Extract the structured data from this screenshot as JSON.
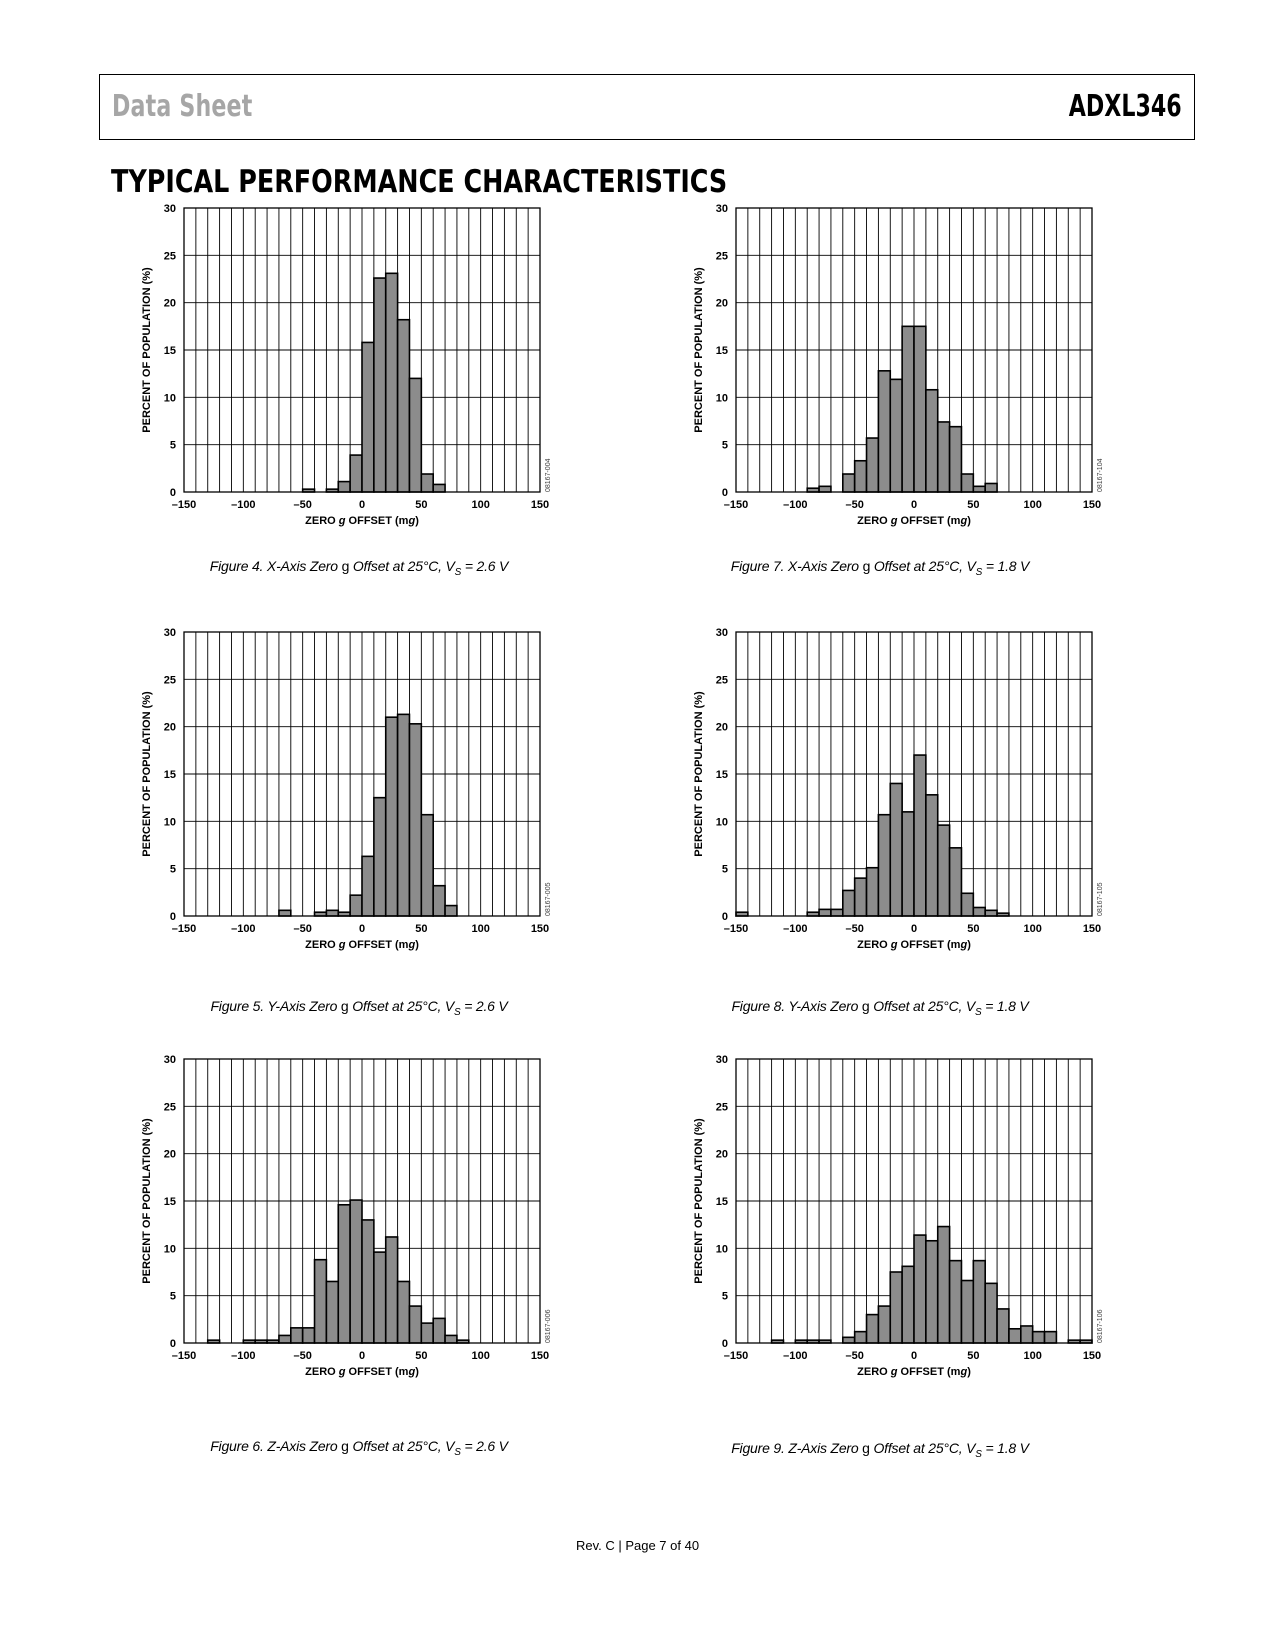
{
  "header": {
    "left_text": "Data Sheet",
    "right_text": "ADXL346"
  },
  "section_title": "TYPICAL PERFORMANCE CHARACTERISTICS",
  "footer": "Rev. C | Page 7 of 40",
  "chart_data": [
    {
      "id": "fig4",
      "type": "bar",
      "caption": {
        "prefix": "Figure 4. X-Axis Zero ",
        "g": "g",
        "middle": " Offset at 25°C, V",
        "sub": "S",
        "suffix": " = 2.6 V"
      },
      "code": "08167-004",
      "xlabel": "ZERO g OFFSET (mg)",
      "ylabel": "PERCENT OF POPULATION (%)",
      "xlim": [
        -150,
        150
      ],
      "ylim": [
        0,
        30
      ],
      "xticks": [
        -150,
        -100,
        -50,
        0,
        50,
        100,
        150
      ],
      "yticks": [
        0,
        5,
        10,
        15,
        20,
        25,
        30
      ],
      "bin_width": 10,
      "x": [
        -50,
        -30,
        -20,
        -10,
        0,
        10,
        20,
        30,
        40,
        50,
        60
      ],
      "values": [
        0.3,
        0.3,
        1.1,
        3.9,
        15.8,
        22.6,
        23.1,
        18.2,
        12.0,
        1.9,
        0.8
      ]
    },
    {
      "id": "fig7",
      "type": "bar",
      "caption": {
        "prefix": "Figure 7. X-Axis Zero ",
        "g": "g",
        "middle": " Offset at 25°C, V",
        "sub": "S",
        "suffix": " = 1.8 V"
      },
      "code": "08167-104",
      "xlabel": "ZERO g OFFSET (mg)",
      "ylabel": "PERCENT OF POPULATION (%)",
      "xlim": [
        -150,
        150
      ],
      "ylim": [
        0,
        30
      ],
      "xticks": [
        -150,
        -100,
        -50,
        0,
        50,
        100,
        150
      ],
      "yticks": [
        0,
        5,
        10,
        15,
        20,
        25,
        30
      ],
      "bin_width": 10,
      "x": [
        -90,
        -80,
        -60,
        -50,
        -40,
        -30,
        -20,
        -10,
        0,
        10,
        20,
        30,
        40,
        50,
        60
      ],
      "values": [
        0.4,
        0.6,
        1.9,
        3.3,
        5.7,
        12.8,
        11.9,
        17.5,
        17.5,
        10.8,
        7.4,
        6.9,
        1.9,
        0.6,
        0.9
      ]
    },
    {
      "id": "fig5",
      "type": "bar",
      "caption": {
        "prefix": "Figure 5. Y-Axis Zero ",
        "g": "g",
        "middle": " Offset at 25°C, V",
        "sub": "S",
        "suffix": " = 2.6 V"
      },
      "code": "08167-005",
      "xlabel": "ZERO g OFFSET (mg)",
      "ylabel": "PERCENT OF POPULATION (%)",
      "xlim": [
        -150,
        150
      ],
      "ylim": [
        0,
        30
      ],
      "xticks": [
        -150,
        -100,
        -50,
        0,
        50,
        100,
        150
      ],
      "yticks": [
        0,
        5,
        10,
        15,
        20,
        25,
        30
      ],
      "bin_width": 10,
      "x": [
        -70,
        -40,
        -30,
        -20,
        -10,
        0,
        10,
        20,
        30,
        40,
        50,
        60,
        70
      ],
      "values": [
        0.6,
        0.4,
        0.6,
        0.4,
        2.2,
        6.3,
        12.5,
        21.0,
        21.3,
        20.3,
        10.7,
        3.2,
        1.1
      ]
    },
    {
      "id": "fig8",
      "type": "bar",
      "caption": {
        "prefix": "Figure 8. Y-Axis Zero ",
        "g": "g",
        "middle": " Offset at 25°C, V",
        "sub": "S",
        "suffix": " = 1.8 V"
      },
      "code": "08167-105",
      "xlabel": "ZERO g OFFSET (mg)",
      "ylabel": "PERCENT OF POPULATION (%)",
      "xlim": [
        -150,
        150
      ],
      "ylim": [
        0,
        30
      ],
      "xticks": [
        -150,
        -100,
        -50,
        0,
        50,
        100,
        150
      ],
      "yticks": [
        0,
        5,
        10,
        15,
        20,
        25,
        30
      ],
      "bin_width": 10,
      "x": [
        -150,
        -90,
        -80,
        -70,
        -60,
        -50,
        -40,
        -30,
        -20,
        -10,
        0,
        10,
        20,
        30,
        40,
        50,
        60,
        70
      ],
      "values": [
        0.4,
        0.4,
        0.7,
        0.7,
        2.7,
        4.0,
        5.1,
        10.7,
        14.0,
        11.0,
        17.0,
        12.8,
        9.6,
        7.2,
        2.4,
        0.9,
        0.6,
        0.3
      ]
    },
    {
      "id": "fig6",
      "type": "bar",
      "caption": {
        "prefix": "Figure 6. Z-Axis Zero ",
        "g": "g",
        "middle": " Offset at 25°C, V",
        "sub": "S",
        "suffix": " = 2.6 V"
      },
      "code": "08167-006",
      "xlabel": "ZERO g OFFSET (mg)",
      "ylabel": "PERCENT OF POPULATION (%)",
      "xlim": [
        -150,
        150
      ],
      "ylim": [
        0,
        30
      ],
      "xticks": [
        -150,
        -100,
        -50,
        0,
        50,
        100,
        150
      ],
      "yticks": [
        0,
        5,
        10,
        15,
        20,
        25,
        30
      ],
      "bin_width": 10,
      "x": [
        -130,
        -100,
        -90,
        -80,
        -70,
        -60,
        -50,
        -40,
        -30,
        -20,
        -10,
        0,
        10,
        20,
        30,
        40,
        50,
        60,
        70,
        80
      ],
      "values": [
        0.3,
        0.3,
        0.3,
        0.3,
        0.8,
        1.6,
        1.6,
        8.8,
        6.5,
        14.6,
        15.1,
        13.0,
        9.6,
        11.2,
        6.5,
        3.9,
        2.1,
        2.6,
        0.8,
        0.3
      ]
    },
    {
      "id": "fig9",
      "type": "bar",
      "caption": {
        "prefix": "Figure 9. Z-Axis Zero ",
        "g": "g",
        "middle": " Offset at 25°C, V",
        "sub": "S",
        "suffix": " = 1.8 V"
      },
      "code": "08167-106",
      "xlabel": "ZERO g OFFSET (mg)",
      "ylabel": "PERCENT OF POPULATION (%)",
      "xlim": [
        -150,
        150
      ],
      "ylim": [
        0,
        30
      ],
      "xticks": [
        -150,
        -100,
        -50,
        0,
        50,
        100,
        150
      ],
      "yticks": [
        0,
        5,
        10,
        15,
        20,
        25,
        30
      ],
      "bin_width": 10,
      "x": [
        -120,
        -100,
        -90,
        -80,
        -60,
        -50,
        -40,
        -30,
        -20,
        -10,
        0,
        10,
        20,
        30,
        40,
        50,
        60,
        70,
        80,
        90,
        100,
        110,
        130,
        140
      ],
      "values": [
        0.3,
        0.3,
        0.3,
        0.3,
        0.6,
        1.2,
        3.0,
        3.9,
        7.5,
        8.1,
        11.4,
        10.8,
        12.3,
        8.7,
        6.6,
        8.7,
        6.3,
        3.6,
        1.5,
        1.8,
        1.2,
        1.2,
        0.3,
        0.3
      ]
    }
  ]
}
